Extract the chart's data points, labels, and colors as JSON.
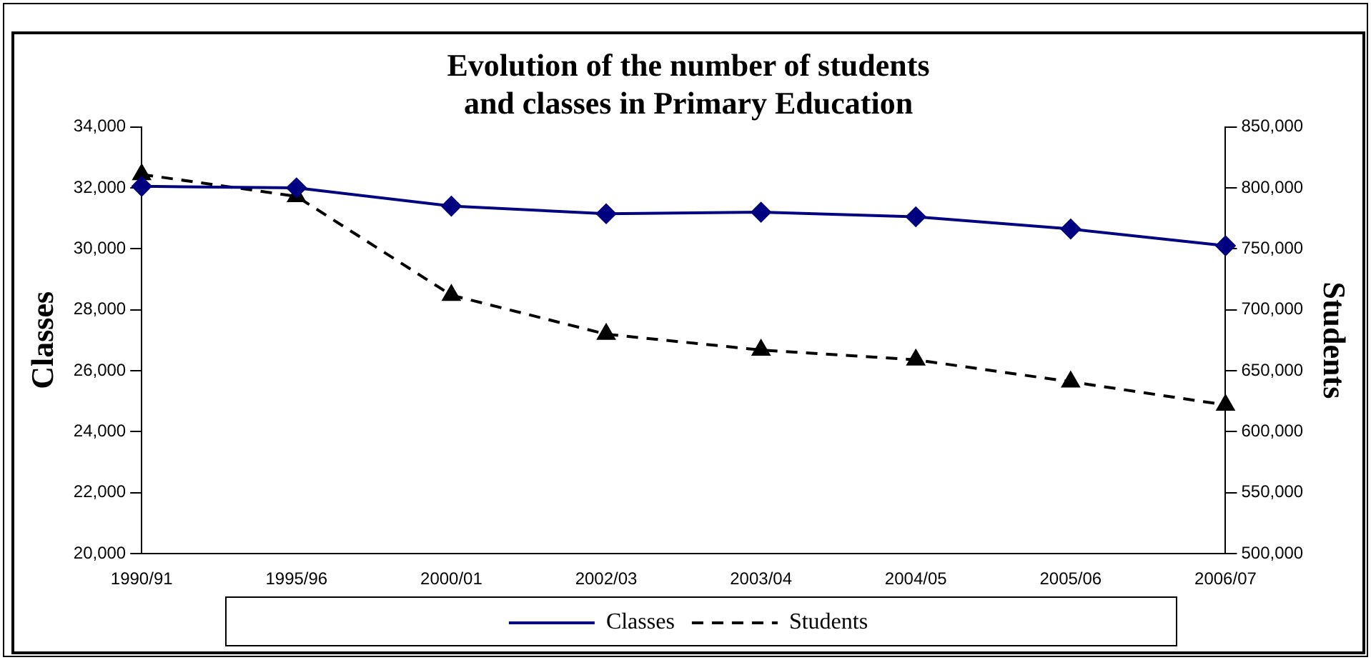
{
  "chart_data": {
    "type": "line",
    "title": "Evolution of the number of students\nand classes in Primary Education",
    "ylabel": "Classes",
    "y2label": "Students",
    "categories": [
      "1990/91",
      "1995/96",
      "2000/01",
      "2002/03",
      "2003/04",
      "2004/05",
      "2005/06",
      "2006/07"
    ],
    "series": [
      {
        "name": "Classes",
        "color": "#000080",
        "marker": "diamond",
        "line_style": "solid",
        "values": [
          32050,
          32000,
          31400,
          31150,
          31200,
          31050,
          30650,
          30100
        ]
      },
      {
        "name": "Students",
        "color": "#000000",
        "marker": "triangle",
        "line_style": "dashed",
        "axis": "y2",
        "values": [
          811000,
          793000,
          712000,
          680000,
          667000,
          659000,
          641000,
          622000
        ]
      }
    ],
    "ylim": [
      20000,
      34000
    ],
    "yticks": [
      {
        "value": 20000,
        "label": "20,000"
      },
      {
        "value": 22000,
        "label": "22,000"
      },
      {
        "value": 24000,
        "label": "24,000"
      },
      {
        "value": 26000,
        "label": "26,000"
      },
      {
        "value": 28000,
        "label": "28,000"
      },
      {
        "value": 30000,
        "label": "30,000"
      },
      {
        "value": 32000,
        "label": "32,000"
      },
      {
        "value": 34000,
        "label": "34,000"
      }
    ],
    "y2lim": [
      500000,
      850000
    ],
    "y2ticks": [
      {
        "value": 500000,
        "label": "500,000"
      },
      {
        "value": 550000,
        "label": "550,000"
      },
      {
        "value": 600000,
        "label": "600,000"
      },
      {
        "value": 650000,
        "label": "650,000"
      },
      {
        "value": 700000,
        "label": "700,000"
      },
      {
        "value": 750000,
        "label": "750,000"
      },
      {
        "value": 800000,
        "label": "800,000"
      },
      {
        "value": 850000,
        "label": "850,000"
      }
    ],
    "grid": false,
    "legend": "bottom"
  }
}
